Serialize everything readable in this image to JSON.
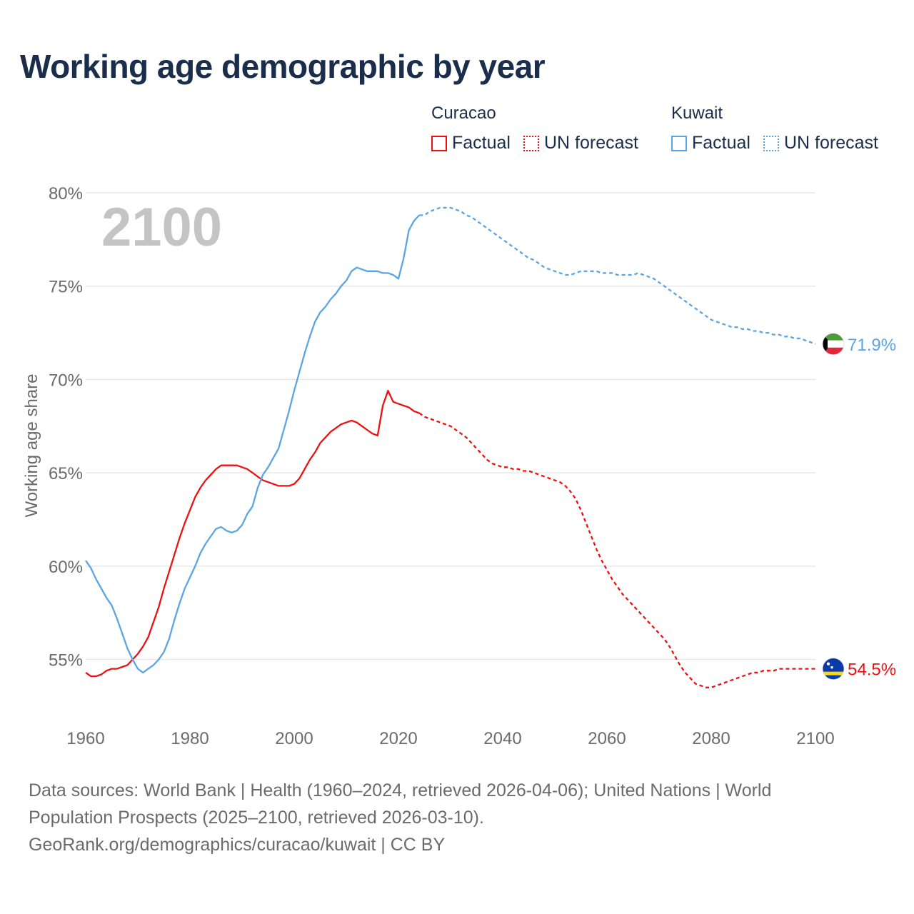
{
  "title": "Working age demographic by year",
  "legend": [
    {
      "country": "Curacao",
      "factual_label": "Factual",
      "forecast_label": "UN forecast",
      "color": "#ee1111"
    },
    {
      "country": "Kuwait",
      "factual_label": "Factual",
      "forecast_label": "UN forecast",
      "color": "#5aa5e4"
    }
  ],
  "footer": {
    "sources": "Data sources: World Bank | Health (1960–2024, retrieved 2026-04-06); United Nations | World Population Prospects (2025–2100, retrieved 2026-03-10).",
    "credit": "GeoRank.org/demographics/curacao/kuwait | CC BY"
  },
  "chart_data": {
    "type": "line",
    "year_watermark": "2100",
    "ylabel": "Working age share",
    "xlim": [
      1960,
      2100
    ],
    "ylim": [
      52,
      80
    ],
    "x_ticks": [
      1960,
      1980,
      2000,
      2020,
      2040,
      2060,
      2080,
      2100
    ],
    "x_tick_labels": [
      "1960",
      "1980",
      "2000",
      "2020",
      "2040",
      "2060",
      "2080",
      "2100"
    ],
    "y_ticks": [
      55,
      60,
      65,
      70,
      75,
      80
    ],
    "y_tick_labels": [
      "55%",
      "60%",
      "65%",
      "70%",
      "75%",
      "80%"
    ],
    "grid": true,
    "forecast_start": 2024,
    "series": [
      {
        "name": "Curacao",
        "color": "#ee1111",
        "end_label": "54.5%",
        "flag": "curacao",
        "points": [
          [
            1960,
            54.3
          ],
          [
            1961,
            54.1
          ],
          [
            1962,
            54.1
          ],
          [
            1963,
            54.2
          ],
          [
            1964,
            54.4
          ],
          [
            1965,
            54.5
          ],
          [
            1966,
            54.5
          ],
          [
            1967,
            54.6
          ],
          [
            1968,
            54.7
          ],
          [
            1969,
            55.0
          ],
          [
            1970,
            55.3
          ],
          [
            1971,
            55.7
          ],
          [
            1972,
            56.2
          ],
          [
            1973,
            57.0
          ],
          [
            1974,
            57.8
          ],
          [
            1975,
            58.8
          ],
          [
            1976,
            59.7
          ],
          [
            1977,
            60.6
          ],
          [
            1978,
            61.5
          ],
          [
            1979,
            62.3
          ],
          [
            1980,
            63.0
          ],
          [
            1981,
            63.7
          ],
          [
            1982,
            64.2
          ],
          [
            1983,
            64.6
          ],
          [
            1984,
            64.9
          ],
          [
            1985,
            65.2
          ],
          [
            1986,
            65.4
          ],
          [
            1987,
            65.4
          ],
          [
            1988,
            65.4
          ],
          [
            1989,
            65.4
          ],
          [
            1990,
            65.3
          ],
          [
            1991,
            65.2
          ],
          [
            1992,
            65.0
          ],
          [
            1993,
            64.8
          ],
          [
            1994,
            64.6
          ],
          [
            1995,
            64.5
          ],
          [
            1996,
            64.4
          ],
          [
            1997,
            64.3
          ],
          [
            1998,
            64.3
          ],
          [
            1999,
            64.3
          ],
          [
            2000,
            64.4
          ],
          [
            2001,
            64.7
          ],
          [
            2002,
            65.2
          ],
          [
            2003,
            65.7
          ],
          [
            2004,
            66.1
          ],
          [
            2005,
            66.6
          ],
          [
            2006,
            66.9
          ],
          [
            2007,
            67.2
          ],
          [
            2008,
            67.4
          ],
          [
            2009,
            67.6
          ],
          [
            2010,
            67.7
          ],
          [
            2011,
            67.8
          ],
          [
            2012,
            67.7
          ],
          [
            2013,
            67.5
          ],
          [
            2014,
            67.3
          ],
          [
            2015,
            67.1
          ],
          [
            2016,
            67.0
          ],
          [
            2017,
            68.6
          ],
          [
            2018,
            69.4
          ],
          [
            2019,
            68.8
          ],
          [
            2020,
            68.7
          ],
          [
            2021,
            68.6
          ],
          [
            2022,
            68.5
          ],
          [
            2023,
            68.3
          ],
          [
            2024,
            68.2
          ],
          [
            2025,
            68.0
          ],
          [
            2026,
            67.9
          ],
          [
            2027,
            67.8
          ],
          [
            2028,
            67.7
          ],
          [
            2029,
            67.6
          ],
          [
            2030,
            67.5
          ],
          [
            2031,
            67.3
          ],
          [
            2032,
            67.1
          ],
          [
            2033,
            66.9
          ],
          [
            2034,
            66.6
          ],
          [
            2035,
            66.3
          ],
          [
            2036,
            66.0
          ],
          [
            2037,
            65.7
          ],
          [
            2038,
            65.5
          ],
          [
            2039,
            65.4
          ],
          [
            2040,
            65.3
          ],
          [
            2041,
            65.3
          ],
          [
            2042,
            65.2
          ],
          [
            2043,
            65.2
          ],
          [
            2044,
            65.1
          ],
          [
            2045,
            65.1
          ],
          [
            2046,
            65.0
          ],
          [
            2047,
            64.9
          ],
          [
            2048,
            64.8
          ],
          [
            2049,
            64.7
          ],
          [
            2050,
            64.6
          ],
          [
            2051,
            64.5
          ],
          [
            2052,
            64.3
          ],
          [
            2053,
            64.0
          ],
          [
            2054,
            63.6
          ],
          [
            2055,
            63.0
          ],
          [
            2056,
            62.3
          ],
          [
            2057,
            61.6
          ],
          [
            2058,
            60.9
          ],
          [
            2059,
            60.3
          ],
          [
            2060,
            59.8
          ],
          [
            2061,
            59.3
          ],
          [
            2062,
            58.9
          ],
          [
            2063,
            58.5
          ],
          [
            2064,
            58.2
          ],
          [
            2065,
            57.9
          ],
          [
            2066,
            57.6
          ],
          [
            2067,
            57.3
          ],
          [
            2068,
            57.0
          ],
          [
            2069,
            56.7
          ],
          [
            2070,
            56.4
          ],
          [
            2071,
            56.1
          ],
          [
            2072,
            55.7
          ],
          [
            2073,
            55.2
          ],
          [
            2074,
            54.7
          ],
          [
            2075,
            54.3
          ],
          [
            2076,
            54.0
          ],
          [
            2077,
            53.7
          ],
          [
            2078,
            53.6
          ],
          [
            2079,
            53.5
          ],
          [
            2080,
            53.5
          ],
          [
            2081,
            53.6
          ],
          [
            2082,
            53.7
          ],
          [
            2083,
            53.8
          ],
          [
            2084,
            53.9
          ],
          [
            2085,
            54.0
          ],
          [
            2086,
            54.1
          ],
          [
            2087,
            54.2
          ],
          [
            2088,
            54.3
          ],
          [
            2089,
            54.3
          ],
          [
            2090,
            54.4
          ],
          [
            2091,
            54.4
          ],
          [
            2092,
            54.4
          ],
          [
            2093,
            54.5
          ],
          [
            2094,
            54.5
          ],
          [
            2095,
            54.5
          ],
          [
            2096,
            54.5
          ],
          [
            2097,
            54.5
          ],
          [
            2098,
            54.5
          ],
          [
            2099,
            54.5
          ],
          [
            2100,
            54.5
          ]
        ]
      },
      {
        "name": "Kuwait",
        "color": "#5aa5e4",
        "end_label": "71.9%",
        "flag": "kuwait",
        "points": [
          [
            1960,
            60.3
          ],
          [
            1961,
            59.9
          ],
          [
            1962,
            59.3
          ],
          [
            1963,
            58.8
          ],
          [
            1964,
            58.3
          ],
          [
            1965,
            57.9
          ],
          [
            1966,
            57.2
          ],
          [
            1967,
            56.4
          ],
          [
            1968,
            55.6
          ],
          [
            1969,
            55.0
          ],
          [
            1970,
            54.5
          ],
          [
            1971,
            54.3
          ],
          [
            1972,
            54.5
          ],
          [
            1973,
            54.7
          ],
          [
            1974,
            55.0
          ],
          [
            1975,
            55.4
          ],
          [
            1976,
            56.1
          ],
          [
            1977,
            57.1
          ],
          [
            1978,
            58.0
          ],
          [
            1979,
            58.8
          ],
          [
            1980,
            59.4
          ],
          [
            1981,
            60.0
          ],
          [
            1982,
            60.7
          ],
          [
            1983,
            61.2
          ],
          [
            1984,
            61.6
          ],
          [
            1985,
            62.0
          ],
          [
            1986,
            62.1
          ],
          [
            1987,
            61.9
          ],
          [
            1988,
            61.8
          ],
          [
            1989,
            61.9
          ],
          [
            1990,
            62.2
          ],
          [
            1991,
            62.8
          ],
          [
            1992,
            63.2
          ],
          [
            1993,
            64.2
          ],
          [
            1994,
            64.9
          ],
          [
            1995,
            65.3
          ],
          [
            1996,
            65.8
          ],
          [
            1997,
            66.3
          ],
          [
            1998,
            67.3
          ],
          [
            1999,
            68.3
          ],
          [
            2000,
            69.4
          ],
          [
            2001,
            70.4
          ],
          [
            2002,
            71.4
          ],
          [
            2003,
            72.3
          ],
          [
            2004,
            73.1
          ],
          [
            2005,
            73.6
          ],
          [
            2006,
            73.9
          ],
          [
            2007,
            74.3
          ],
          [
            2008,
            74.6
          ],
          [
            2009,
            75.0
          ],
          [
            2010,
            75.3
          ],
          [
            2011,
            75.8
          ],
          [
            2012,
            76.0
          ],
          [
            2013,
            75.9
          ],
          [
            2014,
            75.8
          ],
          [
            2015,
            75.8
          ],
          [
            2016,
            75.8
          ],
          [
            2017,
            75.7
          ],
          [
            2018,
            75.7
          ],
          [
            2019,
            75.6
          ],
          [
            2020,
            75.4
          ],
          [
            2021,
            76.5
          ],
          [
            2022,
            78.0
          ],
          [
            2023,
            78.5
          ],
          [
            2024,
            78.8
          ],
          [
            2025,
            78.8
          ],
          [
            2026,
            79.0
          ],
          [
            2027,
            79.1
          ],
          [
            2028,
            79.2
          ],
          [
            2029,
            79.2
          ],
          [
            2030,
            79.2
          ],
          [
            2031,
            79.1
          ],
          [
            2032,
            79.0
          ],
          [
            2033,
            78.8
          ],
          [
            2034,
            78.7
          ],
          [
            2035,
            78.5
          ],
          [
            2036,
            78.3
          ],
          [
            2037,
            78.1
          ],
          [
            2038,
            77.9
          ],
          [
            2039,
            77.7
          ],
          [
            2040,
            77.5
          ],
          [
            2041,
            77.3
          ],
          [
            2042,
            77.1
          ],
          [
            2043,
            76.9
          ],
          [
            2044,
            76.7
          ],
          [
            2045,
            76.5
          ],
          [
            2046,
            76.4
          ],
          [
            2047,
            76.2
          ],
          [
            2048,
            76.0
          ],
          [
            2049,
            75.9
          ],
          [
            2050,
            75.8
          ],
          [
            2051,
            75.7
          ],
          [
            2052,
            75.6
          ],
          [
            2053,
            75.6
          ],
          [
            2054,
            75.7
          ],
          [
            2055,
            75.8
          ],
          [
            2056,
            75.8
          ],
          [
            2057,
            75.8
          ],
          [
            2058,
            75.8
          ],
          [
            2059,
            75.7
          ],
          [
            2060,
            75.7
          ],
          [
            2061,
            75.7
          ],
          [
            2062,
            75.6
          ],
          [
            2063,
            75.6
          ],
          [
            2064,
            75.6
          ],
          [
            2065,
            75.6
          ],
          [
            2066,
            75.7
          ],
          [
            2067,
            75.6
          ],
          [
            2068,
            75.5
          ],
          [
            2069,
            75.4
          ],
          [
            2070,
            75.2
          ],
          [
            2071,
            75.0
          ],
          [
            2072,
            74.8
          ],
          [
            2073,
            74.6
          ],
          [
            2074,
            74.4
          ],
          [
            2075,
            74.2
          ],
          [
            2076,
            74.0
          ],
          [
            2077,
            73.8
          ],
          [
            2078,
            73.6
          ],
          [
            2079,
            73.4
          ],
          [
            2080,
            73.2
          ],
          [
            2081,
            73.1
          ],
          [
            2082,
            73.0
          ],
          [
            2083,
            72.9
          ],
          [
            2084,
            72.8
          ],
          [
            2085,
            72.8
          ],
          [
            2086,
            72.7
          ],
          [
            2087,
            72.7
          ],
          [
            2088,
            72.6
          ],
          [
            2089,
            72.6
          ],
          [
            2090,
            72.5
          ],
          [
            2091,
            72.5
          ],
          [
            2092,
            72.4
          ],
          [
            2093,
            72.4
          ],
          [
            2094,
            72.3
          ],
          [
            2095,
            72.3
          ],
          [
            2096,
            72.2
          ],
          [
            2097,
            72.2
          ],
          [
            2098,
            72.1
          ],
          [
            2099,
            72.0
          ],
          [
            2100,
            71.9
          ]
        ]
      }
    ]
  }
}
